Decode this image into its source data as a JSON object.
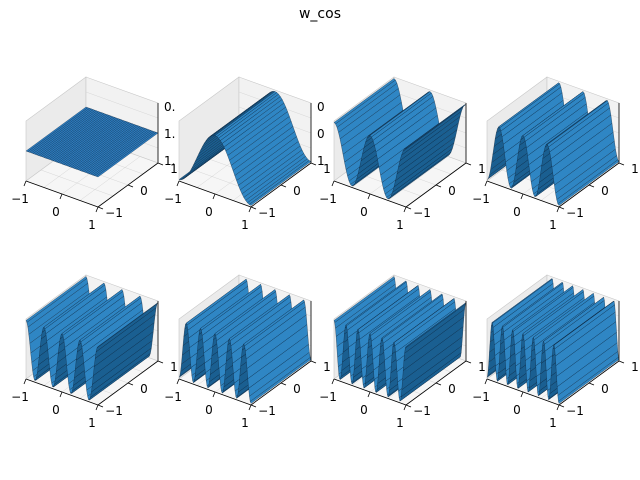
{
  "figure": {
    "title": "w_cos"
  },
  "style": {
    "surface_color": "#1f77b4",
    "edge_color": "#0b1e33",
    "pane_color": "#f2f2f2",
    "grid_color": "#d6d6d6"
  },
  "chart_data": [
    {
      "type": "surface",
      "function": "cos",
      "frequency": 0,
      "x_ticks": [
        "−1",
        "0",
        "1"
      ],
      "y_ticks": [
        "−1",
        "0",
        "1"
      ],
      "z_ticks": [
        "0.",
        "1.",
        "1."
      ],
      "xlim": [
        -1,
        1
      ],
      "ylim": [
        -1,
        1
      ]
    },
    {
      "type": "surface",
      "function": "cos",
      "frequency": 1,
      "x_ticks": [
        "−1",
        "0",
        "1"
      ],
      "y_ticks": [
        "−1",
        "0",
        "1"
      ],
      "z_ticks": [
        "0",
        "0",
        "1"
      ],
      "xlim": [
        -1,
        1
      ],
      "ylim": [
        -1,
        1
      ]
    },
    {
      "type": "surface",
      "function": "cos",
      "frequency": 2,
      "x_ticks": [
        "−1",
        "0",
        "1"
      ],
      "y_ticks": [
        "−1",
        "0",
        "1"
      ],
      "z_ticks": [],
      "xlim": [
        -1,
        1
      ],
      "ylim": [
        -1,
        1
      ]
    },
    {
      "type": "surface",
      "function": "cos",
      "frequency": 3,
      "x_ticks": [
        "−1",
        "0",
        "1"
      ],
      "y_ticks": [
        "−1",
        "0",
        "1"
      ],
      "z_ticks": [],
      "xlim": [
        -1,
        1
      ],
      "ylim": [
        -1,
        1
      ]
    },
    {
      "type": "surface",
      "function": "cos",
      "frequency": 4,
      "x_ticks": [
        "−1",
        "0",
        "1"
      ],
      "y_ticks": [
        "−1",
        "0",
        "1"
      ],
      "z_ticks": [],
      "xlim": [
        -1,
        1
      ],
      "ylim": [
        -1,
        1
      ]
    },
    {
      "type": "surface",
      "function": "cos",
      "frequency": 5,
      "x_ticks": [
        "−1",
        "0",
        "1"
      ],
      "y_ticks": [
        "−1",
        "0",
        "1"
      ],
      "z_ticks": [],
      "xlim": [
        -1,
        1
      ],
      "ylim": [
        -1,
        1
      ]
    },
    {
      "type": "surface",
      "function": "cos",
      "frequency": 6,
      "x_ticks": [
        "−1",
        "0",
        "1"
      ],
      "y_ticks": [
        "−1",
        "0",
        "1"
      ],
      "z_ticks": [],
      "xlim": [
        -1,
        1
      ],
      "ylim": [
        -1,
        1
      ]
    },
    {
      "type": "surface",
      "function": "cos",
      "frequency": 7,
      "x_ticks": [
        "−1",
        "0",
        "1"
      ],
      "y_ticks": [
        "−1",
        "0",
        "1"
      ],
      "z_ticks": [],
      "xlim": [
        -1,
        1
      ],
      "ylim": [
        -1,
        1
      ]
    }
  ]
}
